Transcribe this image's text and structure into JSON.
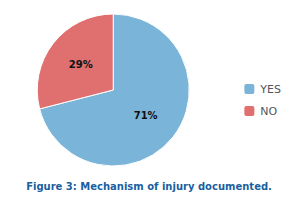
{
  "chart_data": {
    "type": "pie",
    "title": "Figure 3: Mechanism of injury documented.",
    "categories": [
      "YES",
      "NO"
    ],
    "values": [
      71,
      29
    ],
    "value_labels": [
      "71%",
      "29%"
    ],
    "colors": [
      "#7ab4d8",
      "#e07070"
    ],
    "data_labels": true,
    "legend": "right"
  }
}
